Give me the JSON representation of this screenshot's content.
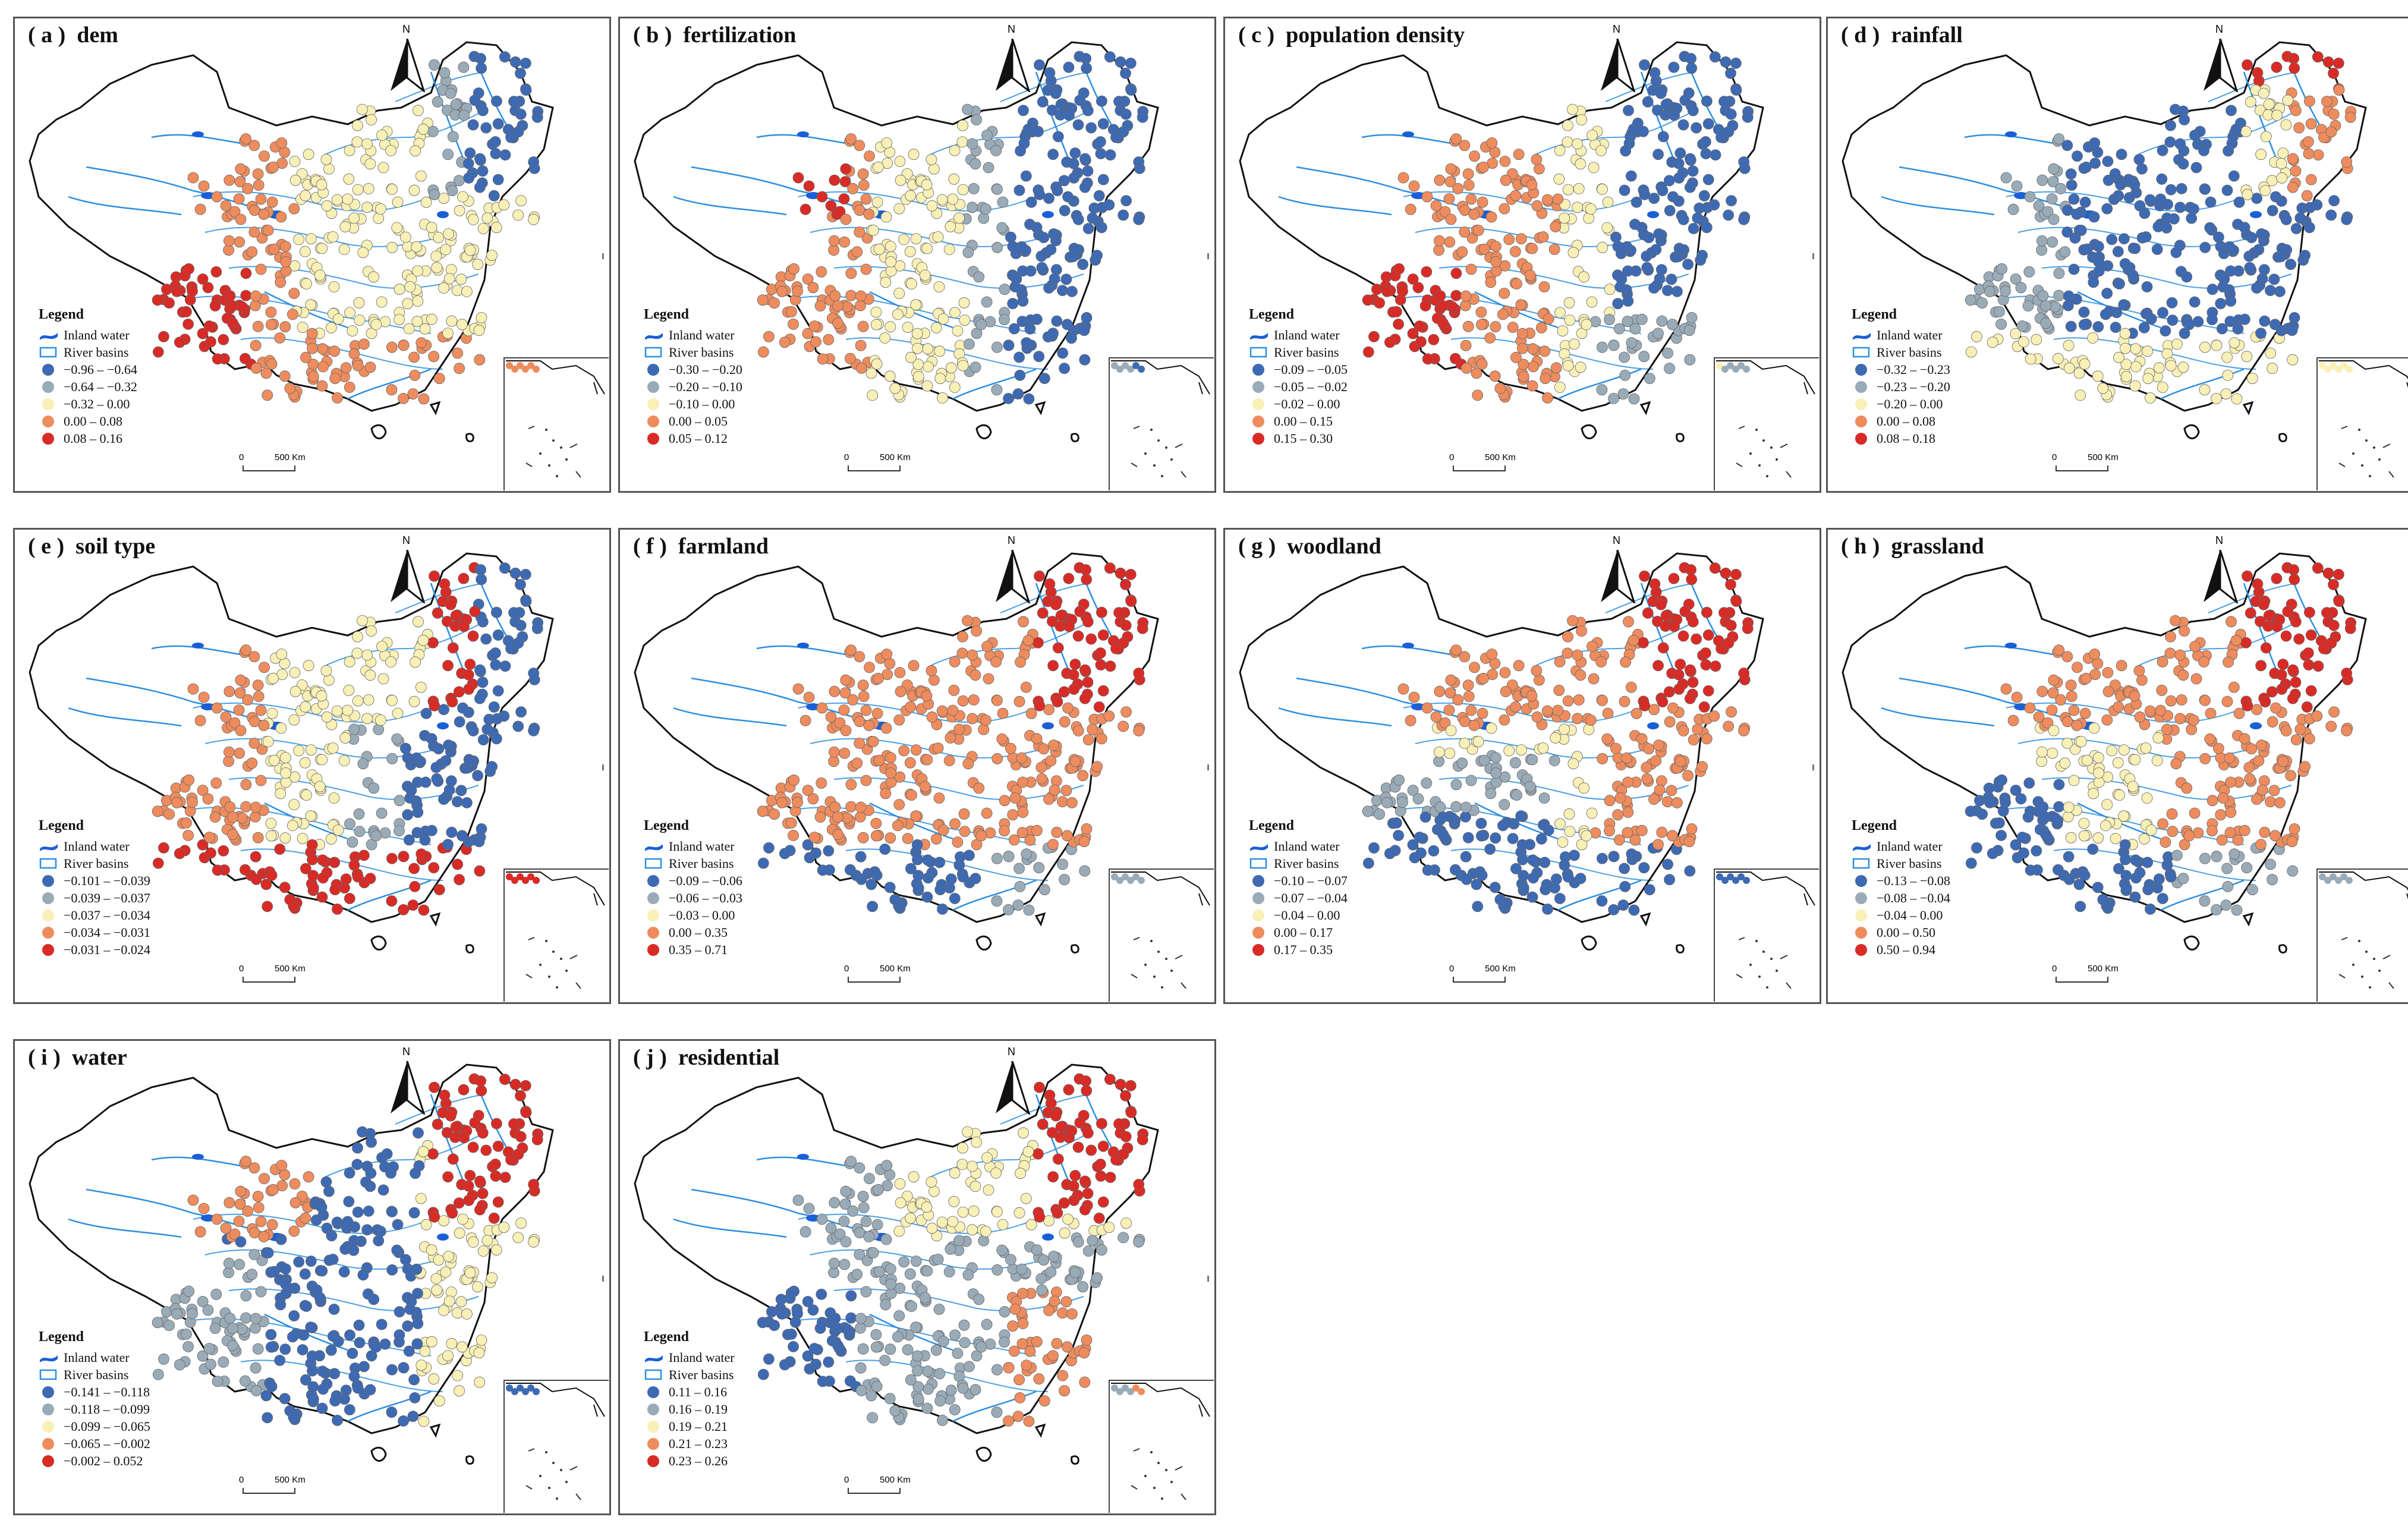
{
  "figure": {
    "north_label": "N",
    "legend_title": "Legend",
    "inland_water_label": "Inland water",
    "river_basins_label": "River basins",
    "scale_zero": "0",
    "scale_max": "500 Km",
    "colors": {
      "class1": "#3d6ab3",
      "class2": "#9aabb8",
      "class3": "#f8f0b6",
      "class4": "#ee8c5e",
      "class5": "#d92b26",
      "river": "#2d8fe0",
      "inland_water": "#1a5fd6",
      "boundary": "#111111"
    }
  },
  "panels": [
    {
      "title": "( a )  dem",
      "classes": [
        "−0.96 – −0.64",
        "−0.64 – −0.32",
        "−0.32 – 0.00",
        "0.00 – 0.08",
        "0.08 – 0.16"
      ],
      "pattern": "dem"
    },
    {
      "title": "( b )  fertilization",
      "classes": [
        "−0.30 – −0.20",
        "−0.20 – −0.10",
        "−0.10 – 0.00",
        "0.00 – 0.05",
        "0.05 – 0.12"
      ],
      "pattern": "fertilization"
    },
    {
      "title": "( c )  population density",
      "classes": [
        "−0.09 – −0.05",
        "−0.05 – −0.02",
        "−0.02 – 0.00",
        "0.00 – 0.15",
        "0.15 – 0.30"
      ],
      "pattern": "population"
    },
    {
      "title": "( d )  rainfall",
      "classes": [
        "−0.32 – −0.23",
        "−0.23 – −0.20",
        "−0.20 – 0.00",
        "0.00 – 0.08",
        "0.08 – 0.18"
      ],
      "pattern": "rainfall"
    },
    {
      "title": "( e )  soil type",
      "classes": [
        "−0.101 – −0.039",
        "−0.039 – −0.037",
        "−0.037 – −0.034",
        "−0.034 – −0.031",
        "−0.031 – −0.024"
      ],
      "pattern": "soil"
    },
    {
      "title": "( f )  farmland",
      "classes": [
        "−0.09 – −0.06",
        "−0.06 – −0.03",
        "−0.03 – 0.00",
        "0.00 – 0.35",
        "0.35 – 0.71"
      ],
      "pattern": "farmland"
    },
    {
      "title": "( g )  woodland",
      "classes": [
        "−0.10 – −0.07",
        "−0.07 – −0.04",
        "−0.04 – 0.00",
        "0.00 – 0.17",
        "0.17 – 0.35"
      ],
      "pattern": "woodland"
    },
    {
      "title": "( h )  grassland",
      "classes": [
        "−0.13 – −0.08",
        "−0.08 – −0.04",
        "−0.04 – 0.00",
        "0.00 – 0.50",
        "0.50 – 0.94"
      ],
      "pattern": "grassland"
    },
    {
      "title": "( i )  water",
      "classes": [
        "−0.141 – −0.118",
        "−0.118 – −0.099",
        "−0.099 – −0.065",
        "−0.065 – −0.002",
        "−0.002 – 0.052"
      ],
      "pattern": "water"
    },
    {
      "title": "( j )  residential",
      "classes": [
        "0.11 – 0.16",
        "0.16 – 0.19",
        "0.19 – 0.21",
        "0.21 – 0.23",
        "0.23 – 0.26"
      ],
      "pattern": "residential"
    }
  ]
}
